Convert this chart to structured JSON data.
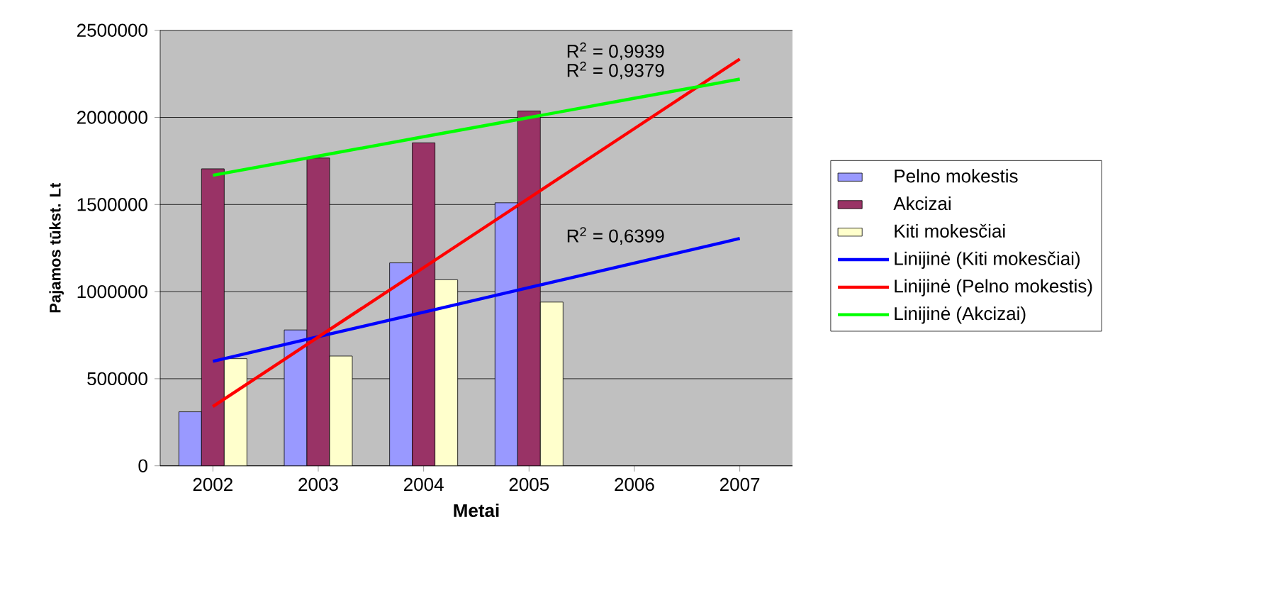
{
  "chart_data": {
    "type": "bar",
    "xlabel": "Metai",
    "ylabel": "Pajamos tūkst. Lt",
    "categories": [
      "2002",
      "2003",
      "2004",
      "2005",
      "2006",
      "2007"
    ],
    "series": [
      {
        "name": "Pelno mokestis",
        "color": "#9999ff",
        "values": [
          310000,
          780000,
          1165000,
          1510000,
          null,
          null
        ]
      },
      {
        "name": "Akcizai",
        "color": "#993366",
        "values": [
          1705000,
          1767000,
          1854000,
          2037000,
          null,
          null
        ]
      },
      {
        "name": "Kiti mokesčiai",
        "color": "#ffffcc",
        "values": [
          615000,
          630000,
          1068000,
          940000,
          null,
          null
        ]
      },
      {
        "name": "Linijinė (Kiti mokesčiai)",
        "type": "line",
        "color": "#0000ff",
        "values": [
          600000,
          741000,
          882000,
          1023000,
          1164000,
          1305000
        ]
      },
      {
        "name": "Linijinė (Pelno mokestis)",
        "type": "line",
        "color": "#ff0000",
        "values": [
          340000,
          739000,
          1138000,
          1537000,
          1936000,
          2335000
        ]
      },
      {
        "name": "Linijinė (Akcizai)",
        "type": "line",
        "color": "#00ff00",
        "values": [
          1668000,
          1778000,
          1889000,
          1999000,
          2110000,
          2220000
        ]
      }
    ],
    "ylim": [
      0,
      2500000
    ],
    "yticks": [
      0,
      500000,
      1000000,
      1500000,
      2000000,
      2500000
    ],
    "grid": "y",
    "legend": "right",
    "annotations": [
      "R$^{2}$ = 0,9939",
      "R$^{2}$ = 0,9379",
      "R$^{2}$ = 0,6399"
    ]
  }
}
